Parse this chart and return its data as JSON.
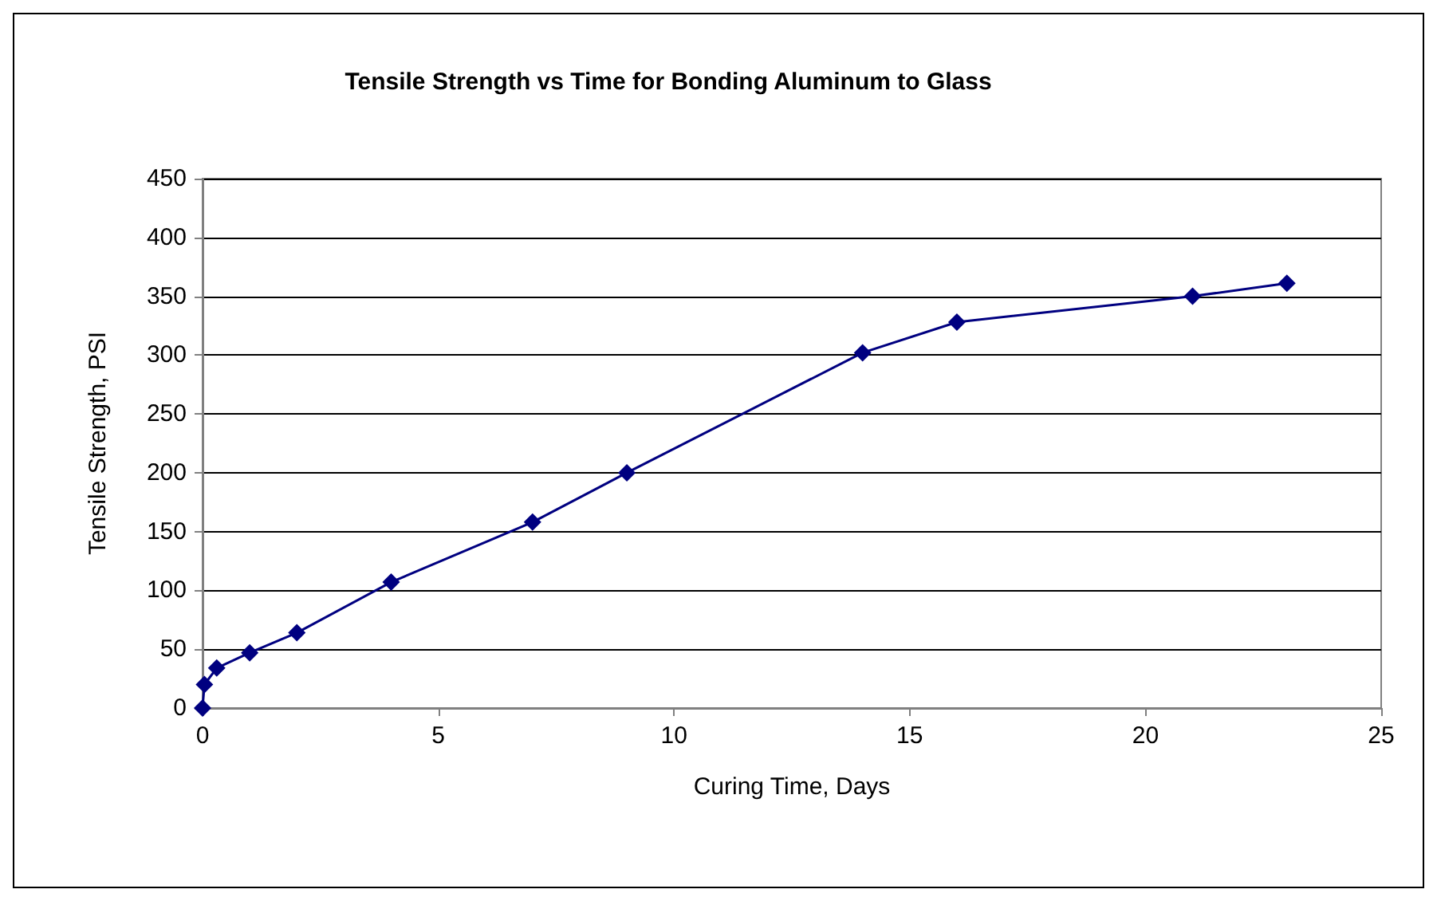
{
  "chart_data": {
    "type": "line",
    "title": "Tensile Strength vs Time for Bonding Aluminum to Glass",
    "xlabel": "Curing Time, Days",
    "ylabel": "Tensile Strength, PSI",
    "x": [
      0,
      0.04,
      0.3,
      1,
      2,
      4,
      7,
      9,
      14,
      16,
      21,
      23
    ],
    "series": [
      {
        "color": "#000080",
        "values": [
          0,
          20,
          34,
          47,
          64,
          107,
          158,
          200,
          302,
          328,
          350,
          361
        ]
      }
    ],
    "xlim": [
      0,
      25
    ],
    "xticks": [
      0,
      5,
      10,
      15,
      20,
      25
    ],
    "ylim": [
      0,
      450
    ],
    "yticks": [
      0,
      50,
      100,
      150,
      200,
      250,
      300,
      350,
      400,
      450
    ],
    "grid": "y",
    "marker": "diamond",
    "line_style": "solid"
  }
}
